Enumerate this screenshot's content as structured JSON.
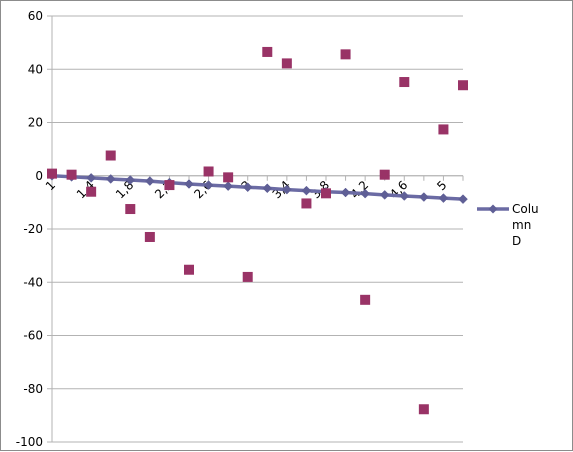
{
  "chart_data": {
    "type": "line",
    "title": "",
    "xlabel": "",
    "ylabel": "",
    "ylim": [
      -100,
      60
    ],
    "y_ticks": [
      60,
      40,
      20,
      0,
      -20,
      -40,
      -60,
      -80,
      -100
    ],
    "x_tick_labels": [
      "1",
      "1,4",
      "1,8",
      "2,2",
      "2,6",
      "3",
      "3,4",
      "3,8",
      "4,2",
      "4,6",
      "5"
    ],
    "grid": "horizontal",
    "legend_position": "right",
    "x": [
      1,
      1.2,
      1.4,
      1.6,
      1.8,
      2,
      2.2,
      2.4,
      2.6,
      2.8,
      3,
      3.2,
      3.4,
      3.6,
      3.8,
      4,
      4.2,
      4.4,
      4.6,
      4.8,
      5,
      5.2
    ],
    "series": [
      {
        "name": "Column D",
        "legend_label": "Colu mn D",
        "style": "line-diamond",
        "color": "#6b6ba4",
        "marker_color": "#5f5f96",
        "values": [
          0,
          -0.4,
          -0.8,
          -1.2,
          -1.6,
          -2.0,
          -2.6,
          -3.1,
          -3.5,
          -3.9,
          -4.3,
          -4.7,
          -5.2,
          -5.6,
          -6.0,
          -6.3,
          -6.7,
          -7.2,
          -7.6,
          -8.0,
          -8.4,
          -8.8
        ]
      },
      {
        "name": "",
        "style": "square-markers",
        "color": "#993366",
        "values": [
          0.8,
          0.4,
          -6.0,
          7.6,
          -12.5,
          -23.0,
          -3.5,
          -35.3,
          1.6,
          -0.6,
          -38.0,
          46.5,
          42.2,
          -10.4,
          -6.6,
          45.6,
          -46.6,
          0.4,
          35.2,
          -87.7,
          17.4,
          34.0
        ]
      }
    ]
  }
}
